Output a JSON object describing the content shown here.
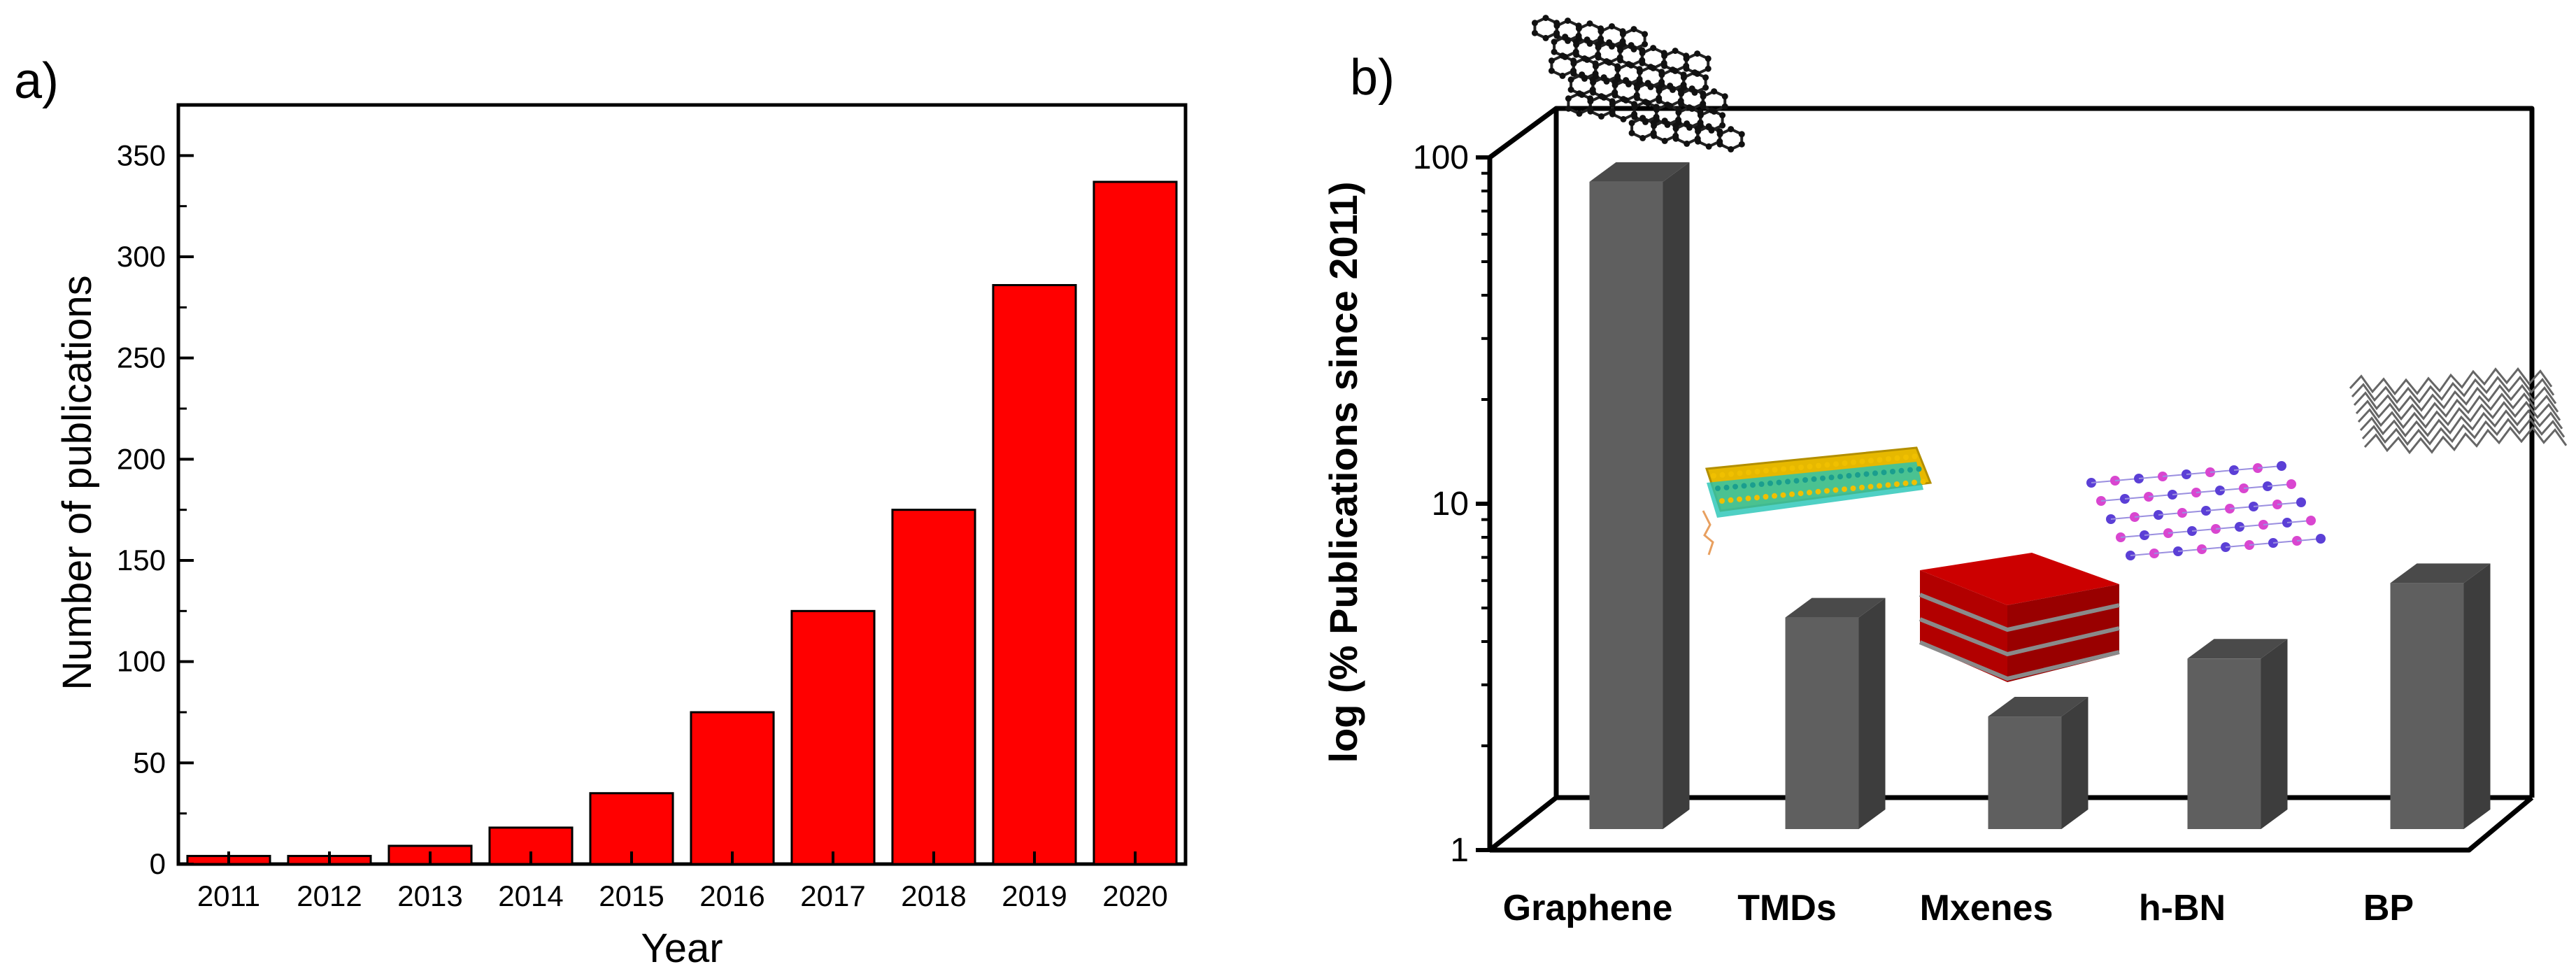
{
  "colors": {
    "bar_red": "#ff0000",
    "bar_gray_front": "#5f5f5f",
    "bar_gray_side": "#3d3d3d",
    "bar_gray_top": "#4a4a4a",
    "axis": "#000000"
  },
  "chart_data": [
    {
      "panel_label": "a)",
      "type": "bar",
      "title": "",
      "xlabel": "Year",
      "ylabel": "Number of publications",
      "categories": [
        "2011",
        "2012",
        "2013",
        "2014",
        "2015",
        "2016",
        "2017",
        "2018",
        "2019",
        "2020"
      ],
      "values": [
        4,
        4,
        9,
        18,
        35,
        75,
        125,
        175,
        286,
        337
      ],
      "ylim": [
        0,
        375
      ],
      "yticks": [
        "0",
        "50",
        "100",
        "150",
        "200",
        "250",
        "300",
        "350"
      ],
      "grid": false,
      "legend": "none"
    },
    {
      "panel_label": "b)",
      "type": "bar",
      "title": "",
      "xlabel": "",
      "ylabel": "log (% Publications since 2011)",
      "yscale": "log",
      "categories": [
        "Graphene",
        "TMDs",
        "Mxenes",
        "h-BN",
        "BP"
      ],
      "values": [
        93,
        4.4,
        2.2,
        3.3,
        5.6
      ],
      "ylim": [
        1,
        100
      ],
      "yticks": [
        "1",
        "10",
        "100"
      ],
      "style": "3d",
      "grid": false,
      "legend": "none"
    }
  ]
}
